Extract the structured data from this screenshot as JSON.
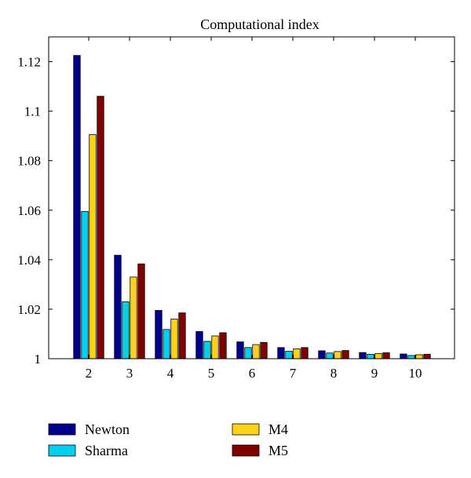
{
  "chart_data": {
    "type": "bar",
    "title": "Computational index",
    "xlabel": "",
    "ylabel": "",
    "categories": [
      "2",
      "3",
      "4",
      "5",
      "6",
      "7",
      "8",
      "9",
      "10"
    ],
    "series": [
      {
        "name": "Newton",
        "color": "#00008f",
        "values": [
          1.1225,
          1.0418,
          1.0195,
          1.011,
          1.0068,
          1.0045,
          1.0032,
          1.0025,
          1.0019
        ]
      },
      {
        "name": "Sharma",
        "color": "#00d0ef",
        "values": [
          1.0595,
          1.023,
          1.0118,
          1.007,
          1.0045,
          1.003,
          1.0023,
          1.0018,
          1.0013
        ]
      },
      {
        "name": "M4",
        "color": "#ffd21a",
        "values": [
          1.0905,
          1.033,
          1.016,
          1.0092,
          1.0057,
          1.004,
          1.0029,
          1.0021,
          1.0016
        ]
      },
      {
        "name": "M5",
        "color": "#800000",
        "values": [
          1.106,
          1.0383,
          1.0185,
          1.0105,
          1.0066,
          1.0045,
          1.0033,
          1.0024,
          1.0018
        ]
      }
    ],
    "ylim": [
      1.0,
      1.13
    ],
    "yticks": [
      1.0,
      1.02,
      1.04,
      1.06,
      1.08,
      1.1,
      1.12
    ],
    "ytick_labels": [
      "1",
      "1.02",
      "1.04",
      "1.06",
      "1.08",
      "1.1",
      "1.12"
    ],
    "grid": false,
    "legend_position": "bottom"
  }
}
